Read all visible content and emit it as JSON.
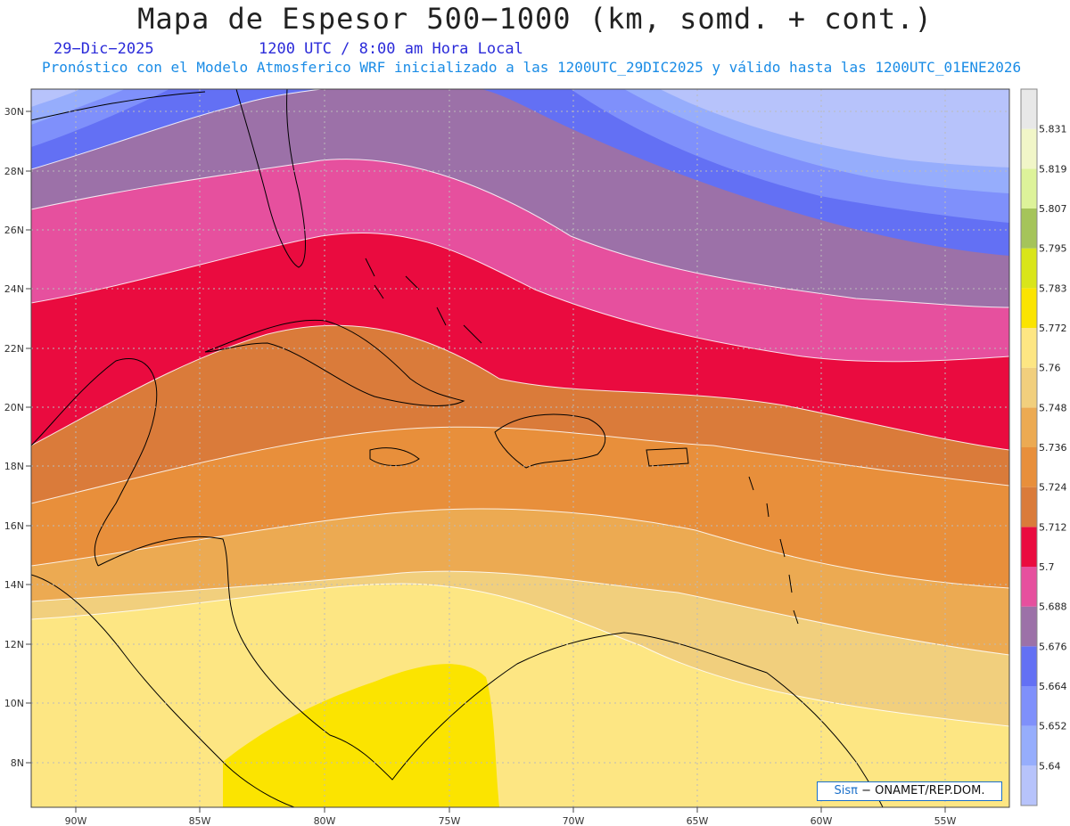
{
  "title": "Mapa de Espesor 500−1000 (km, somd. + cont.)",
  "date_label": "29−Dic−2025",
  "time_label": "1200 UTC / 8:00 am Hora Local",
  "subtitle": "Pronóstico con el Modelo Atmosferico WRF inicializado a las 1200UTC_29DIC2025 y válido hasta las  1200UTC_01ENE2026",
  "credit": {
    "logo": "Sisπ",
    "text": "− ONAMET/REP.DOM."
  },
  "axes": {
    "lat_labels": [
      "30N",
      "28N",
      "26N",
      "24N",
      "22N",
      "20N",
      "18N",
      "16N",
      "14N",
      "12N",
      "10N",
      "8N"
    ],
    "lon_labels": [
      "90W",
      "85W",
      "80W",
      "75W",
      "70W",
      "65W",
      "60W",
      "55W"
    ]
  },
  "legend": {
    "levels": [
      "5.64",
      "5.652",
      "5.664",
      "5.676",
      "5.688",
      "5.7",
      "5.712",
      "5.724",
      "5.736",
      "5.748",
      "5.76",
      "5.772",
      "5.783",
      "5.795",
      "5.807",
      "5.819",
      "5.831"
    ],
    "colors": [
      "#b7c3fb",
      "#96adfc",
      "#7f90fb",
      "#6370f4",
      "#9c71a8",
      "#e6509e",
      "#ea0b3f",
      "#da7b3a",
      "#e88f3b",
      "#ecaa52",
      "#f1cf7d",
      "#fde683",
      "#fbe400",
      "#d9e51a",
      "#a5c45a",
      "#ddf39a",
      "#f1f6c8",
      "#e8e8e8"
    ]
  }
}
